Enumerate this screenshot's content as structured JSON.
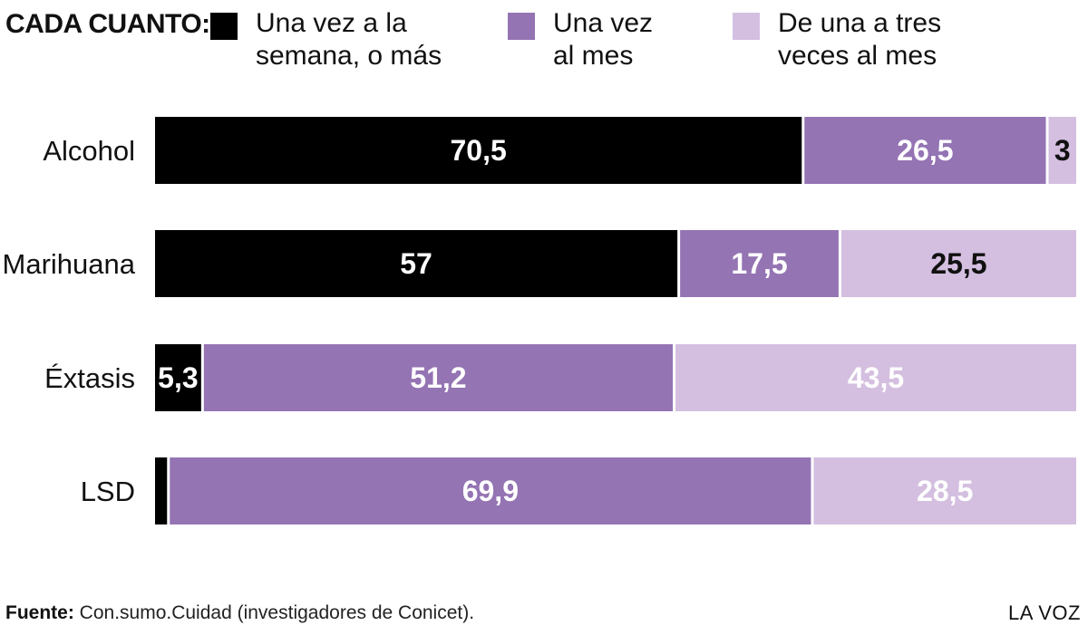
{
  "legend": {
    "title": "CADA CUANTO:",
    "items": [
      {
        "label": "Una vez a la\nsemana, o más",
        "color": "#000000"
      },
      {
        "label": "Una vez\nal mes",
        "color": "#9474b3"
      },
      {
        "label": "De una a tres\nveces al mes",
        "color": "#d4bfe0"
      }
    ]
  },
  "chart_data": {
    "type": "bar",
    "orientation": "horizontal",
    "stacked": true,
    "categories": [
      "Alcohol",
      "Marihuana",
      "Éxtasis",
      "LSD"
    ],
    "series": [
      {
        "name": "Una vez a la semana, o más",
        "color": "#000000",
        "values": [
          70.5,
          57,
          5.3,
          1.6
        ],
        "labels": [
          "70,5",
          "57",
          "5,3",
          ""
        ]
      },
      {
        "name": "Una vez al mes",
        "color": "#9474b3",
        "values": [
          26.5,
          17.5,
          51.2,
          69.9
        ],
        "labels": [
          "26,5",
          "17,5",
          "51,2",
          "69,9"
        ]
      },
      {
        "name": "De una a tres veces al mes",
        "color": "#d4bfe0",
        "values": [
          3,
          25.5,
          43.5,
          28.5
        ],
        "labels": [
          "3",
          "25,5",
          "43,5",
          "28,5"
        ]
      }
    ],
    "label_colors": [
      "#ffffff",
      "#ffffff",
      "#111111",
      "#ffffff",
      "#ffffff",
      "#111111",
      "#ffffff",
      "#ffffff",
      "#ffffff",
      "#ffffff",
      "#ffffff",
      "#ffffff"
    ],
    "xlim": [
      0,
      100
    ],
    "title": "",
    "xlabel": "",
    "ylabel": "",
    "grid": false,
    "legend_position": "top"
  },
  "footer": {
    "source_label": "Fuente:",
    "source_text": "Con.sumo.Cuidad (investigadores de Conicet).",
    "brand": "LA VOZ"
  }
}
